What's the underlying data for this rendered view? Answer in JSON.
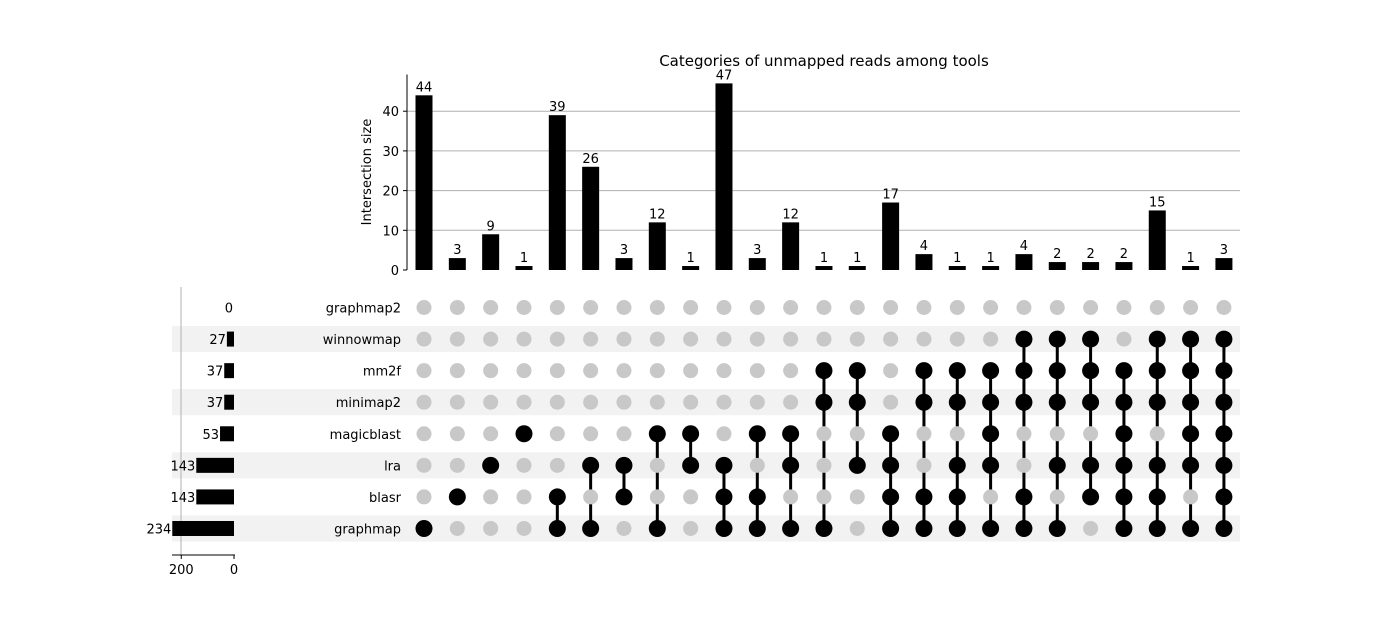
{
  "chart_data": {
    "type": "upset",
    "title": "Categories of unmapped reads among tools",
    "ylabel": "Intersection size",
    "ylim": [
      0,
      49
    ],
    "yticks": [
      0,
      10,
      20,
      30,
      40
    ],
    "set_size_ticks": [
      200,
      0
    ],
    "grid": true,
    "sets": [
      {
        "name": "graphmap2",
        "size": 0
      },
      {
        "name": "winnowmap",
        "size": 27
      },
      {
        "name": "mm2f",
        "size": 37
      },
      {
        "name": "minimap2",
        "size": 37
      },
      {
        "name": "magicblast",
        "size": 53
      },
      {
        "name": "lra",
        "size": 143
      },
      {
        "name": "blasr",
        "size": 143
      },
      {
        "name": "graphmap",
        "size": 234
      }
    ],
    "intersections": [
      {
        "value": 44,
        "members": [
          "graphmap"
        ]
      },
      {
        "value": 3,
        "members": [
          "blasr"
        ]
      },
      {
        "value": 9,
        "members": [
          "lra"
        ]
      },
      {
        "value": 1,
        "members": [
          "magicblast"
        ]
      },
      {
        "value": 39,
        "members": [
          "blasr",
          "graphmap"
        ]
      },
      {
        "value": 26,
        "members": [
          "lra",
          "graphmap"
        ]
      },
      {
        "value": 3,
        "members": [
          "lra",
          "blasr"
        ]
      },
      {
        "value": 12,
        "members": [
          "magicblast",
          "graphmap"
        ]
      },
      {
        "value": 1,
        "members": [
          "magicblast",
          "lra"
        ]
      },
      {
        "value": 47,
        "members": [
          "lra",
          "blasr",
          "graphmap"
        ]
      },
      {
        "value": 3,
        "members": [
          "magicblast",
          "blasr",
          "graphmap"
        ]
      },
      {
        "value": 12,
        "members": [
          "magicblast",
          "lra",
          "graphmap"
        ]
      },
      {
        "value": 1,
        "members": [
          "mm2f",
          "minimap2",
          "graphmap"
        ]
      },
      {
        "value": 1,
        "members": [
          "mm2f",
          "minimap2",
          "lra"
        ]
      },
      {
        "value": 17,
        "members": [
          "magicblast",
          "lra",
          "blasr",
          "graphmap"
        ]
      },
      {
        "value": 4,
        "members": [
          "mm2f",
          "minimap2",
          "blasr",
          "graphmap"
        ]
      },
      {
        "value": 1,
        "members": [
          "mm2f",
          "minimap2",
          "lra",
          "blasr",
          "graphmap"
        ]
      },
      {
        "value": 1,
        "members": [
          "mm2f",
          "minimap2",
          "magicblast",
          "lra",
          "graphmap"
        ]
      },
      {
        "value": 4,
        "members": [
          "winnowmap",
          "mm2f",
          "minimap2",
          "blasr",
          "graphmap"
        ]
      },
      {
        "value": 2,
        "members": [
          "winnowmap",
          "mm2f",
          "minimap2",
          "lra",
          "graphmap"
        ]
      },
      {
        "value": 2,
        "members": [
          "winnowmap",
          "mm2f",
          "minimap2",
          "lra",
          "blasr"
        ]
      },
      {
        "value": 2,
        "members": [
          "mm2f",
          "minimap2",
          "magicblast",
          "lra",
          "blasr",
          "graphmap"
        ]
      },
      {
        "value": 15,
        "members": [
          "winnowmap",
          "mm2f",
          "minimap2",
          "lra",
          "blasr",
          "graphmap"
        ]
      },
      {
        "value": 1,
        "members": [
          "winnowmap",
          "mm2f",
          "minimap2",
          "magicblast",
          "lra",
          "graphmap"
        ]
      },
      {
        "value": 3,
        "members": [
          "winnowmap",
          "mm2f",
          "minimap2",
          "magicblast",
          "lra",
          "blasr",
          "graphmap"
        ]
      }
    ],
    "colors": {
      "bar": "#000000",
      "dot_active": "#000000",
      "dot_inactive": "#c8c8c8",
      "grid": "#b0b0b0",
      "row_shade": "#f2f2f2"
    }
  }
}
